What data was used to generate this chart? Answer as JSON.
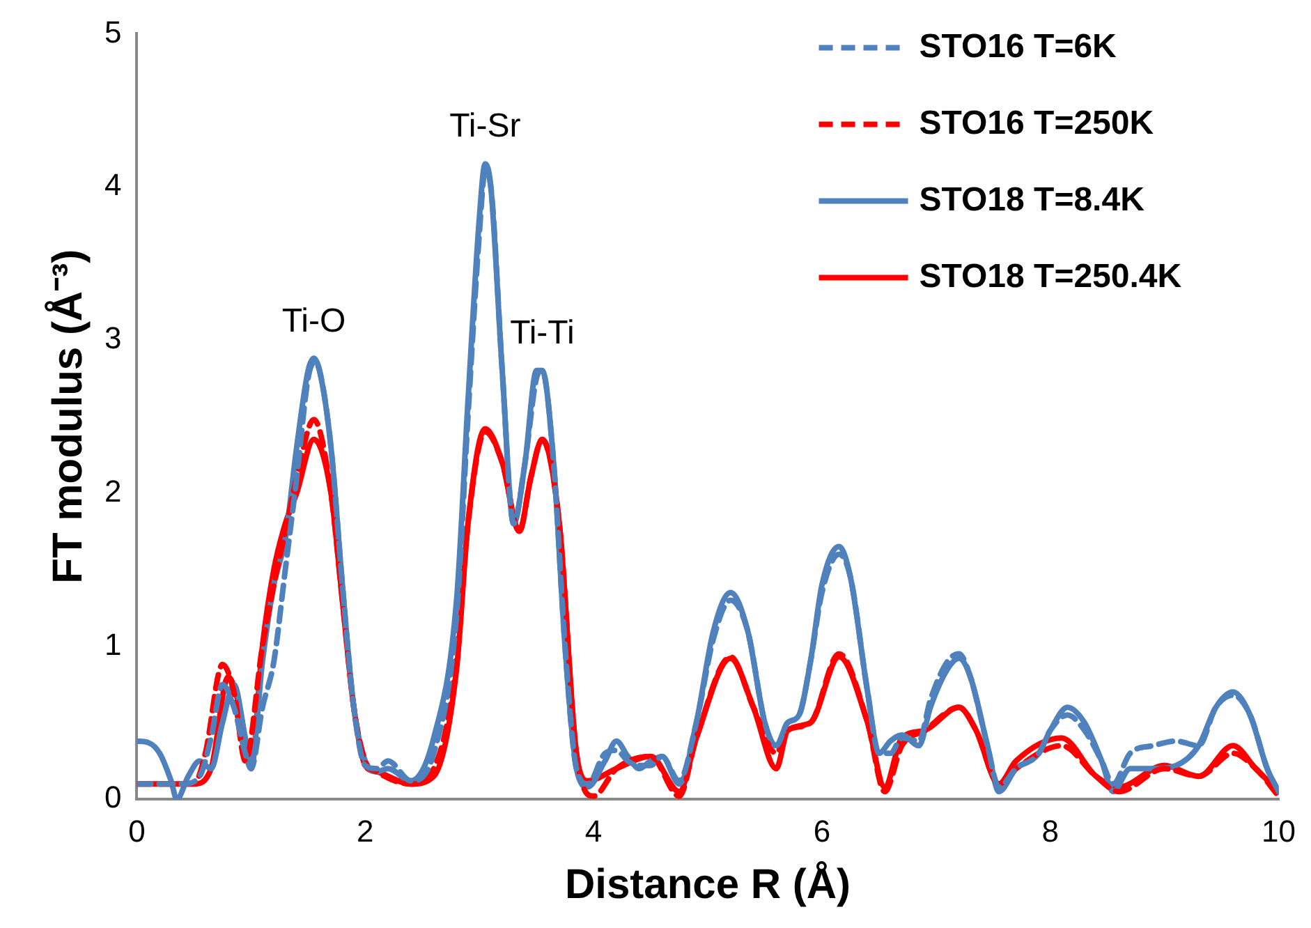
{
  "chart_data": {
    "type": "line",
    "xlabel": "Distance R (Å)",
    "ylabel": "FT modulus (Å⁻³)",
    "xlim": [
      0,
      10
    ],
    "xticks": [
      0,
      2,
      4,
      6,
      8,
      10
    ],
    "ylim": [
      0,
      5
    ],
    "yticks": [
      0,
      1,
      2,
      3,
      4,
      5
    ],
    "grid": false,
    "legend": "top right",
    "marker": "none",
    "annotations": [
      {
        "text": "Ti-O",
        "x": 1.55,
        "y": 2.88
      },
      {
        "text": "Ti-Sr",
        "x": 3.05,
        "y": 4.15
      },
      {
        "text": "Ti-Ti",
        "x": 3.55,
        "y": 2.8
      }
    ],
    "series": [
      {
        "name": "STO16 T=6K",
        "color": "#4f81bd",
        "line_style": "dashed",
        "x": [
          0,
          0.2,
          0.4,
          0.55,
          0.65,
          0.75,
          0.85,
          0.95,
          1.0,
          1.1,
          1.2,
          1.3,
          1.4,
          1.5,
          1.55,
          1.6,
          1.7,
          1.8,
          1.9,
          2.0,
          2.1,
          2.2,
          2.4,
          2.6,
          2.8,
          2.9,
          3.0,
          3.05,
          3.1,
          3.2,
          3.3,
          3.4,
          3.5,
          3.55,
          3.65,
          3.75,
          3.85,
          3.95,
          4.1,
          4.2,
          4.3,
          4.4,
          4.5,
          4.6,
          4.75,
          4.9,
          5.05,
          5.2,
          5.35,
          5.5,
          5.6,
          5.7,
          5.8,
          5.9,
          6.0,
          6.15,
          6.25,
          6.4,
          6.5,
          6.6,
          6.7,
          6.85,
          6.95,
          7.1,
          7.2,
          7.3,
          7.45,
          7.55,
          7.7,
          7.9,
          8.0,
          8.15,
          8.3,
          8.45,
          8.55,
          8.7,
          8.9,
          9.1,
          9.3,
          9.45,
          9.6,
          9.75,
          9.9,
          10
        ],
        "values": [
          0.1,
          0.1,
          0.1,
          0.15,
          0.4,
          0.75,
          0.6,
          0.3,
          0.2,
          0.6,
          0.9,
          1.5,
          2.1,
          2.75,
          2.85,
          2.8,
          2.3,
          1.4,
          0.6,
          0.22,
          0.2,
          0.25,
          0.12,
          0.3,
          1.2,
          2.5,
          3.7,
          4.1,
          4.0,
          2.8,
          1.8,
          2.2,
          2.75,
          2.8,
          2.2,
          1.0,
          0.2,
          0.1,
          0.3,
          0.32,
          0.25,
          0.22,
          0.22,
          0.28,
          0.12,
          0.5,
          1.05,
          1.3,
          1.1,
          0.5,
          0.35,
          0.5,
          0.55,
          0.9,
          1.35,
          1.6,
          1.45,
          0.7,
          0.3,
          0.3,
          0.4,
          0.38,
          0.65,
          0.9,
          0.95,
          0.8,
          0.35,
          0.08,
          0.2,
          0.3,
          0.45,
          0.55,
          0.45,
          0.25,
          0.1,
          0.3,
          0.35,
          0.38,
          0.35,
          0.6,
          0.68,
          0.55,
          0.2,
          0.05
        ]
      },
      {
        "name": "STO16 T=250K",
        "color": "#ff0000",
        "line_style": "dashed",
        "x": [
          0,
          0.5,
          0.6,
          0.75,
          0.85,
          0.95,
          1.1,
          1.2,
          1.3,
          1.4,
          1.55,
          1.7,
          1.8,
          1.9,
          2.0,
          2.1,
          2.4,
          2.6,
          2.8,
          2.9,
          3.05,
          3.2,
          3.35,
          3.45,
          3.55,
          3.7,
          3.85,
          4.0,
          4.2,
          4.5,
          4.75,
          4.9,
          5.2,
          5.4,
          5.6,
          5.7,
          5.9,
          6.15,
          6.4,
          6.55,
          6.7,
          6.9,
          7.2,
          7.35,
          7.55,
          7.7,
          8.1,
          8.4,
          8.6,
          9.0,
          9.3,
          9.6,
          9.8,
          10
        ],
        "values": [
          0.1,
          0.1,
          0.3,
          0.88,
          0.7,
          0.25,
          1.0,
          1.4,
          1.75,
          2.1,
          2.48,
          2.0,
          1.3,
          0.6,
          0.25,
          0.18,
          0.1,
          0.2,
          0.9,
          1.8,
          2.4,
          2.2,
          1.75,
          2.1,
          2.35,
          1.8,
          0.3,
          0.02,
          0.2,
          0.28,
          0.02,
          0.4,
          0.93,
          0.6,
          0.3,
          0.45,
          0.5,
          0.95,
          0.5,
          0.05,
          0.35,
          0.45,
          0.6,
          0.45,
          0.1,
          0.2,
          0.35,
          0.15,
          0.05,
          0.2,
          0.15,
          0.3,
          0.2,
          0.02
        ]
      },
      {
        "name": "STO18 T=8.4K",
        "color": "#4f81bd",
        "line_style": "solid",
        "x": [
          0,
          0.1,
          0.2,
          0.3,
          0.35,
          0.45,
          0.55,
          0.65,
          0.75,
          0.85,
          0.95,
          1.0,
          1.1,
          1.2,
          1.3,
          1.4,
          1.5,
          1.55,
          1.6,
          1.7,
          1.8,
          1.9,
          2.0,
          2.1,
          2.2,
          2.4,
          2.6,
          2.8,
          2.9,
          3.0,
          3.05,
          3.1,
          3.2,
          3.3,
          3.4,
          3.5,
          3.55,
          3.65,
          3.75,
          3.85,
          3.95,
          4.1,
          4.2,
          4.3,
          4.4,
          4.5,
          4.6,
          4.75,
          4.9,
          5.05,
          5.2,
          5.35,
          5.5,
          5.6,
          5.7,
          5.8,
          5.9,
          6.0,
          6.15,
          6.25,
          6.4,
          6.5,
          6.6,
          6.7,
          6.85,
          6.95,
          7.1,
          7.2,
          7.3,
          7.45,
          7.55,
          7.7,
          7.9,
          8.0,
          8.15,
          8.3,
          8.45,
          8.55,
          8.7,
          8.9,
          9.1,
          9.3,
          9.45,
          9.6,
          9.75,
          9.9,
          10
        ],
        "values": [
          0.38,
          0.37,
          0.3,
          0.12,
          0.0,
          0.15,
          0.25,
          0.2,
          0.5,
          0.75,
          0.4,
          0.22,
          0.9,
          1.4,
          1.7,
          2.3,
          2.8,
          2.88,
          2.8,
          2.3,
          1.4,
          0.6,
          0.25,
          0.18,
          0.2,
          0.12,
          0.4,
          1.3,
          2.6,
          3.8,
          4.15,
          4.0,
          2.8,
          1.8,
          2.2,
          2.8,
          2.8,
          2.2,
          1.0,
          0.2,
          0.08,
          0.25,
          0.38,
          0.28,
          0.2,
          0.25,
          0.28,
          0.1,
          0.5,
          1.1,
          1.35,
          1.1,
          0.5,
          0.35,
          0.5,
          0.55,
          0.9,
          1.4,
          1.65,
          1.45,
          0.7,
          0.3,
          0.38,
          0.42,
          0.35,
          0.6,
          0.85,
          0.92,
          0.8,
          0.35,
          0.05,
          0.2,
          0.3,
          0.45,
          0.6,
          0.5,
          0.25,
          0.05,
          0.2,
          0.2,
          0.22,
          0.35,
          0.6,
          0.7,
          0.55,
          0.2,
          0.05
        ]
      },
      {
        "name": "STO18 T=250.4K",
        "color": "#ff0000",
        "line_style": "solid",
        "x": [
          0,
          0.5,
          0.65,
          0.8,
          0.9,
          1.0,
          1.1,
          1.2,
          1.3,
          1.4,
          1.55,
          1.7,
          1.8,
          1.9,
          2.0,
          2.1,
          2.4,
          2.6,
          2.8,
          2.9,
          3.05,
          3.2,
          3.35,
          3.45,
          3.55,
          3.7,
          3.85,
          3.95,
          4.2,
          4.5,
          4.75,
          4.9,
          5.2,
          5.4,
          5.6,
          5.7,
          5.9,
          6.15,
          6.4,
          6.55,
          6.7,
          6.9,
          7.2,
          7.35,
          7.55,
          7.7,
          8.1,
          8.4,
          8.6,
          9.0,
          9.3,
          9.6,
          9.8,
          10
        ],
        "values": [
          0.1,
          0.1,
          0.2,
          0.8,
          0.6,
          0.2,
          1.0,
          1.5,
          1.8,
          2.0,
          2.35,
          2.0,
          1.3,
          0.6,
          0.22,
          0.18,
          0.1,
          0.15,
          0.85,
          1.8,
          2.42,
          2.2,
          1.75,
          2.1,
          2.35,
          1.8,
          0.3,
          0.12,
          0.2,
          0.28,
          0.05,
          0.4,
          0.92,
          0.6,
          0.2,
          0.45,
          0.5,
          0.93,
          0.5,
          0.08,
          0.4,
          0.45,
          0.6,
          0.45,
          0.1,
          0.25,
          0.4,
          0.15,
          0.08,
          0.22,
          0.15,
          0.35,
          0.2,
          0.05
        ]
      }
    ]
  }
}
